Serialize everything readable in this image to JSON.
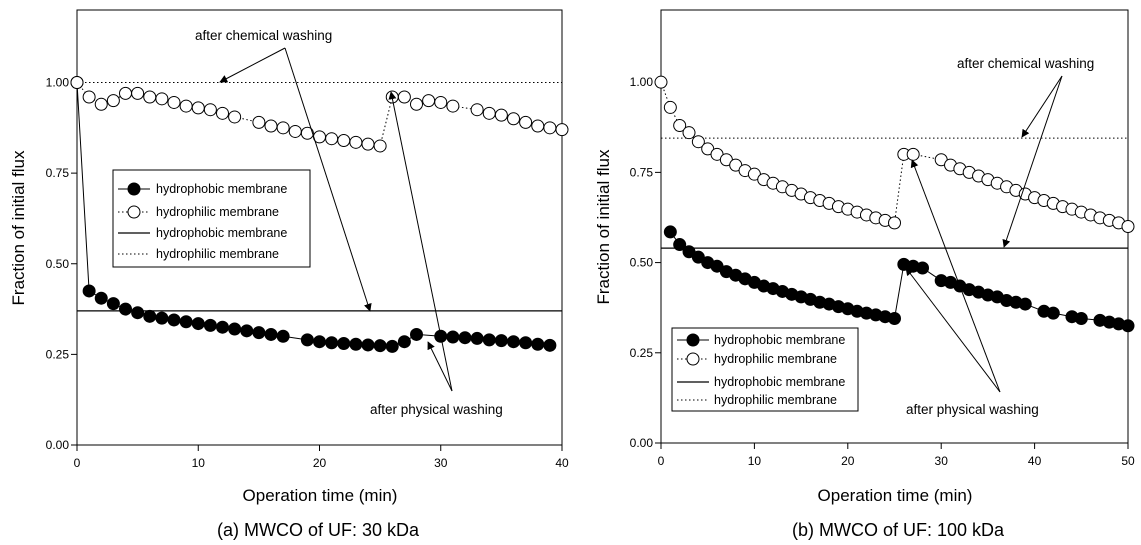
{
  "chart_data": [
    {
      "type": "scatter",
      "caption": "(a) MWCO of UF: 30 kDa",
      "xlabel": "Operation time (min)",
      "ylabel": "Fraction of initial flux",
      "xlim": [
        0,
        40
      ],
      "ylim": [
        0,
        1.2
      ],
      "x_ticks": [
        0,
        10,
        20,
        30,
        40
      ],
      "y_ticks": [
        0.0,
        0.25,
        0.5,
        0.75,
        1.0
      ],
      "x_tick_labels": [
        "0",
        "10",
        "20",
        "30",
        "40"
      ],
      "y_tick_labels": [
        "0.00",
        "0.25",
        "0.50",
        "0.75",
        "1.00"
      ],
      "grid": false,
      "legend_position": "center-left",
      "legend": [
        "hydrophobic membrane",
        "hydrophilic membrane",
        "hydrophobic membrane",
        "hydrophilic membrane"
      ],
      "series": [
        {
          "name": "hydrophobic membrane",
          "marker": "filled-circle",
          "x": [
            0,
            1,
            2,
            3,
            4,
            5,
            6,
            7,
            8,
            9,
            10,
            11,
            12,
            13,
            14,
            15,
            16,
            17,
            19,
            20,
            21,
            22,
            23,
            24,
            25,
            26,
            27,
            28,
            30,
            31,
            32,
            33,
            34,
            35,
            36,
            37,
            38,
            39
          ],
          "y": [
            1.0,
            0.425,
            0.405,
            0.39,
            0.375,
            0.365,
            0.355,
            0.35,
            0.345,
            0.34,
            0.335,
            0.33,
            0.325,
            0.32,
            0.315,
            0.31,
            0.305,
            0.3,
            0.29,
            0.285,
            0.282,
            0.28,
            0.278,
            0.276,
            0.274,
            0.272,
            0.285,
            0.305,
            0.3,
            0.298,
            0.296,
            0.294,
            0.29,
            0.288,
            0.285,
            0.282,
            0.278,
            0.275
          ]
        },
        {
          "name": "hydrophilic membrane",
          "marker": "open-circle",
          "x": [
            0,
            1,
            2,
            3,
            4,
            5,
            6,
            7,
            8,
            9,
            10,
            11,
            12,
            13,
            15,
            16,
            17,
            18,
            19,
            20,
            21,
            22,
            23,
            24,
            25,
            26,
            27,
            28,
            29,
            30,
            31,
            33,
            34,
            35,
            36,
            37,
            38,
            39,
            40
          ],
          "y": [
            1.0,
            0.96,
            0.94,
            0.95,
            0.97,
            0.97,
            0.96,
            0.955,
            0.945,
            0.935,
            0.93,
            0.925,
            0.915,
            0.905,
            0.89,
            0.88,
            0.875,
            0.865,
            0.86,
            0.85,
            0.845,
            0.84,
            0.835,
            0.83,
            0.825,
            0.96,
            0.96,
            0.94,
            0.95,
            0.945,
            0.935,
            0.925,
            0.915,
            0.91,
            0.9,
            0.89,
            0.88,
            0.875,
            0.87
          ]
        },
        {
          "name": "hydrophobic membrane",
          "style": "solid-line",
          "y": 0.37
        },
        {
          "name": "hydrophilic membrane",
          "style": "dotted-line",
          "y": 1.0
        }
      ],
      "annotations": [
        "after chemical washing",
        "after physical washing"
      ]
    },
    {
      "type": "scatter",
      "caption": "(b) MWCO of UF: 100 kDa",
      "xlabel": "Operation time (min)",
      "ylabel": "Fraction of initial flux",
      "xlim": [
        0,
        50
      ],
      "ylim": [
        0,
        1.2
      ],
      "x_ticks": [
        0,
        10,
        20,
        30,
        40,
        50
      ],
      "y_ticks": [
        0.0,
        0.25,
        0.5,
        0.75,
        1.0
      ],
      "x_tick_labels": [
        "0",
        "10",
        "20",
        "30",
        "40",
        "50"
      ],
      "y_tick_labels": [
        "0.00",
        "0.25",
        "0.50",
        "0.75",
        "1.00"
      ],
      "grid": false,
      "legend_position": "bottom-left",
      "legend": [
        "hydrophobic membrane",
        "hydrophilic membrane",
        "hydrophobic membrane",
        "hydrophilic membrane"
      ],
      "series": [
        {
          "name": "hydrophobic membrane",
          "marker": "filled-circle",
          "x": [
            1,
            2,
            3,
            4,
            5,
            6,
            7,
            8,
            9,
            10,
            11,
            12,
            13,
            14,
            15,
            16,
            17,
            18,
            19,
            20,
            21,
            22,
            23,
            24,
            25,
            26,
            27,
            28,
            30,
            31,
            32,
            33,
            34,
            35,
            36,
            37,
            38,
            39,
            41,
            42,
            44,
            45,
            47,
            48,
            49,
            50
          ],
          "y": [
            0.585,
            0.55,
            0.53,
            0.515,
            0.5,
            0.49,
            0.475,
            0.465,
            0.455,
            0.445,
            0.435,
            0.428,
            0.42,
            0.412,
            0.405,
            0.398,
            0.39,
            0.385,
            0.378,
            0.372,
            0.365,
            0.36,
            0.355,
            0.35,
            0.345,
            0.495,
            0.49,
            0.485,
            0.45,
            0.445,
            0.435,
            0.425,
            0.418,
            0.41,
            0.405,
            0.395,
            0.39,
            0.385,
            0.365,
            0.36,
            0.35,
            0.345,
            0.34,
            0.335,
            0.33,
            0.325
          ]
        },
        {
          "name": "hydrophilic membrane",
          "marker": "open-circle",
          "x": [
            0,
            1,
            2,
            3,
            4,
            5,
            6,
            7,
            8,
            9,
            10,
            11,
            12,
            13,
            14,
            15,
            16,
            17,
            18,
            19,
            20,
            21,
            22,
            23,
            24,
            25,
            26,
            27,
            30,
            31,
            32,
            33,
            34,
            35,
            36,
            37,
            38,
            39,
            40,
            41,
            42,
            43,
            44,
            45,
            46,
            47,
            48,
            49,
            50
          ],
          "y": [
            1.0,
            0.93,
            0.88,
            0.86,
            0.835,
            0.815,
            0.8,
            0.785,
            0.77,
            0.755,
            0.745,
            0.73,
            0.72,
            0.71,
            0.7,
            0.69,
            0.68,
            0.672,
            0.664,
            0.655,
            0.648,
            0.64,
            0.632,
            0.624,
            0.617,
            0.61,
            0.8,
            0.8,
            0.785,
            0.77,
            0.76,
            0.75,
            0.74,
            0.73,
            0.72,
            0.71,
            0.7,
            0.69,
            0.68,
            0.672,
            0.664,
            0.655,
            0.648,
            0.64,
            0.632,
            0.624,
            0.617,
            0.61,
            0.6
          ]
        },
        {
          "name": "hydrophobic membrane",
          "style": "solid-line",
          "y": 0.54
        },
        {
          "name": "hydrophilic membrane",
          "style": "dotted-line",
          "y": 0.845
        }
      ],
      "annotations": [
        "after chemical washing",
        "after physical washing"
      ]
    }
  ]
}
